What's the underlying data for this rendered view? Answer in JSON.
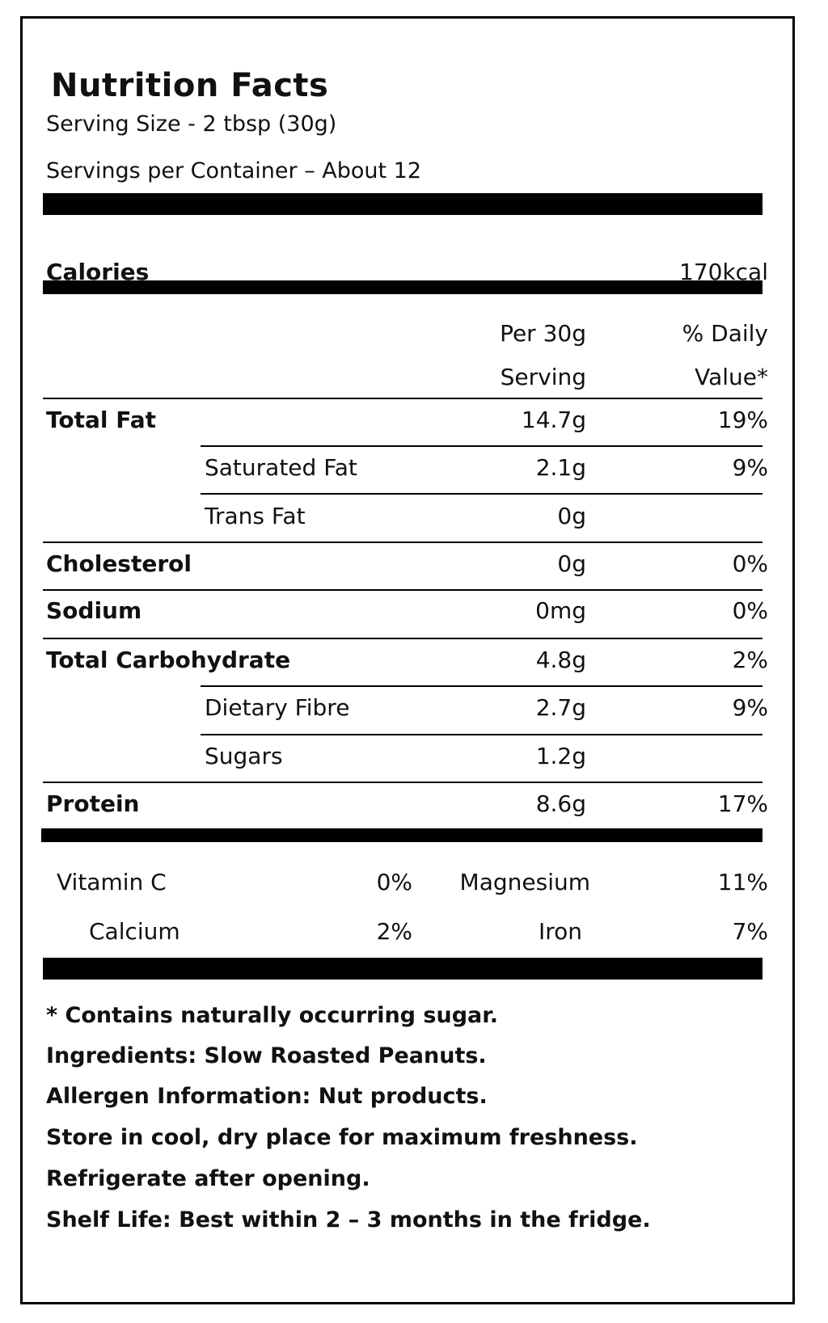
{
  "title": "Nutrition Facts",
  "serving_size": "Serving Size - 2 tbsp (30g)",
  "servings_per_container": "Servings per Container – About 12",
  "calories": {
    "label": "Calories",
    "value": "170kcal"
  },
  "columns": {
    "amount_line1": "Per 30g",
    "amount_line2": "Serving",
    "dv_line1": "% Daily",
    "dv_line2": "Value*"
  },
  "nutrients": [
    {
      "label": "Total Fat",
      "amount": "14.7g",
      "dv": "19%"
    },
    {
      "label": "Saturated Fat",
      "amount": "2.1g",
      "dv": "9%"
    },
    {
      "label": "Trans Fat",
      "amount": "0g",
      "dv": ""
    },
    {
      "label": "Cholesterol",
      "amount": "0g",
      "dv": "0%"
    },
    {
      "label": "Sodium",
      "amount": "0mg",
      "dv": "0%"
    },
    {
      "label": "Total Carbohydrate",
      "amount": "4.8g",
      "dv": "2%"
    },
    {
      "label": "Dietary Fibre",
      "amount": "2.7g",
      "dv": "9%"
    },
    {
      "label": "Sugars",
      "amount": "1.2g",
      "dv": ""
    },
    {
      "label": "Protein",
      "amount": "8.6g",
      "dv": "17%"
    }
  ],
  "vitamins": [
    {
      "label": "Vitamin C",
      "value": "0%"
    },
    {
      "label": "Magnesium",
      "value": "11%"
    },
    {
      "label": "Calcium",
      "value": "2%"
    },
    {
      "label": "Iron",
      "value": "7%"
    }
  ],
  "footnotes": [
    "* Contains naturally occurring sugar.",
    "Ingredients: Slow Roasted Peanuts.",
    "Allergen Information: Nut products.",
    "Store in cool, dry place for maximum freshness.",
    "Refrigerate after opening.",
    "Shelf Life: Best within 2 – 3 months in the fridge."
  ]
}
